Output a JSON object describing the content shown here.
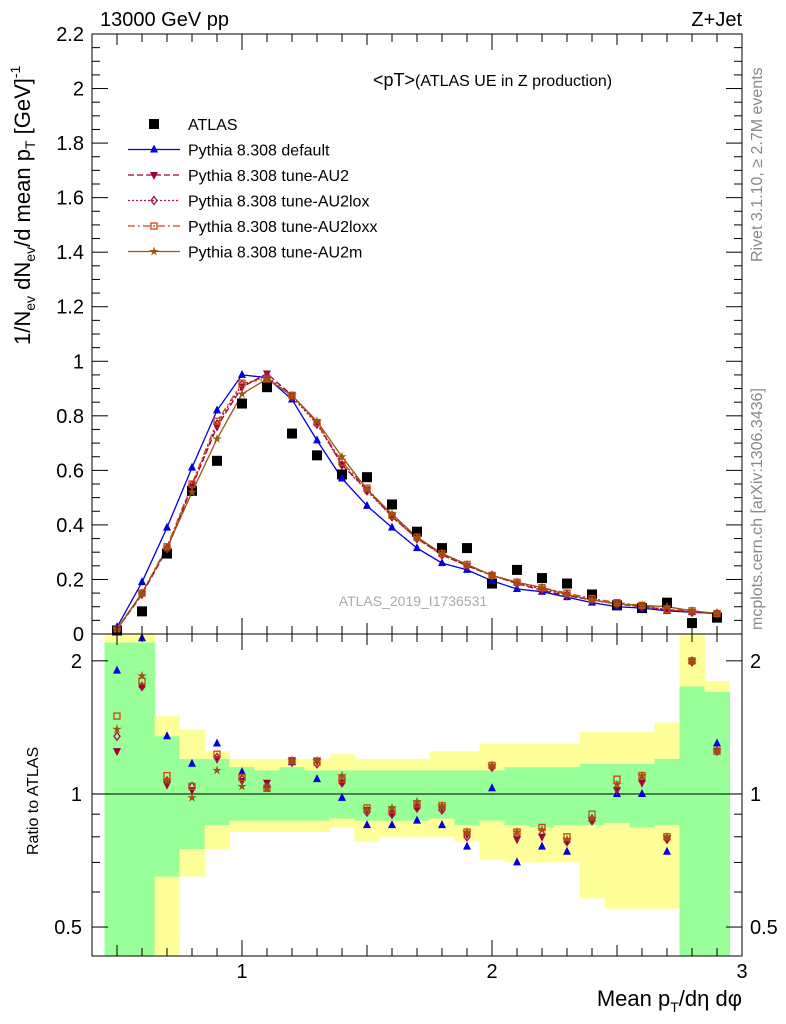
{
  "header": {
    "left": "13000 GeV pp",
    "right": "Z+Jet",
    "plot_title_main": "<pT>",
    "plot_title_sub": " (ATLAS UE in Z production)"
  },
  "side_labels": {
    "rivet": "Rivet 3.1.10, ≥ 2.7M events",
    "mcplots": "mcplots.cern.ch [arXiv:1306.3436]"
  },
  "watermark": "ATLAS_2019_I1736531",
  "axes": {
    "xlabel": "Mean p_T/dη dφ",
    "ylabel_top": "1/N_ev dN_ev/d mean p_T [GeV]^-1",
    "ylabel_bottom": "Ratio to ATLAS"
  },
  "colors": {
    "data": "#000000",
    "default": "#0000dd",
    "au2": "#990033",
    "au2lox": "#aa1144",
    "au2loxx": "#cc4411",
    "au2m": "#995511",
    "band_inner": "#99ff99",
    "band_outer": "#ffff99"
  },
  "chart_data": [
    {
      "type": "scatter",
      "panel": "main",
      "x": [
        0.5,
        0.6,
        0.7,
        0.8,
        0.9,
        1.0,
        1.1,
        1.2,
        1.3,
        1.4,
        1.5,
        1.6,
        1.7,
        1.8,
        1.9,
        2.0,
        2.1,
        2.2,
        2.3,
        2.4,
        2.5,
        2.6,
        2.7,
        2.8,
        2.9
      ],
      "xlim": [
        0.4,
        3.0
      ],
      "ylim": [
        0,
        2.2
      ],
      "xticks": [
        1,
        2,
        3
      ],
      "yticks": [
        0,
        0.2,
        0.4,
        0.6,
        0.8,
        1,
        1.2,
        1.4,
        1.6,
        1.8,
        2,
        2.2
      ],
      "ytick_labels": [
        "0",
        "0.2",
        "0.4",
        "0.6",
        "0.8",
        "1",
        "1.2",
        "1.4",
        "1.6",
        "1.8",
        "2",
        "2.2"
      ],
      "series": [
        {
          "name": "ATLAS",
          "key": "data",
          "style": "square",
          "values": [
            0.013,
            0.083,
            0.295,
            0.525,
            0.635,
            0.845,
            0.905,
            0.735,
            0.655,
            0.585,
            0.575,
            0.475,
            0.375,
            0.315,
            0.315,
            0.185,
            0.235,
            0.205,
            0.185,
            0.145,
            0.105,
            0.095,
            0.115,
            0.04,
            0.06
          ]
        },
        {
          "name": "Pythia 8.308 default",
          "key": "default",
          "style": "triangle",
          "line": "solid",
          "values": [
            0.025,
            0.19,
            0.39,
            0.61,
            0.82,
            0.95,
            0.94,
            0.86,
            0.71,
            0.57,
            0.47,
            0.39,
            0.315,
            0.26,
            0.235,
            0.195,
            0.165,
            0.155,
            0.135,
            0.115,
            0.1,
            0.095,
            0.085,
            0.08,
            0.075
          ]
        },
        {
          "name": "Pythia 8.308 tune-AU2",
          "key": "au2",
          "style": "tridown",
          "line": "dash",
          "values": [
            0.016,
            0.145,
            0.31,
            0.54,
            0.76,
            0.905,
            0.955,
            0.875,
            0.775,
            0.62,
            0.53,
            0.43,
            0.35,
            0.29,
            0.25,
            0.215,
            0.185,
            0.16,
            0.14,
            0.125,
            0.11,
            0.1,
            0.09,
            0.08,
            0.075
          ]
        },
        {
          "name": "Pythia 8.308 tune-AU2lox",
          "key": "au2lox",
          "style": "diamond",
          "line": "dot",
          "values": [
            0.019,
            0.148,
            0.315,
            0.545,
            0.77,
            0.915,
            0.945,
            0.87,
            0.77,
            0.62,
            0.525,
            0.43,
            0.35,
            0.29,
            0.25,
            0.215,
            0.185,
            0.165,
            0.145,
            0.125,
            0.11,
            0.1,
            0.09,
            0.08,
            0.075
          ]
        },
        {
          "name": "Pythia 8.308 tune-AU2loxx",
          "key": "au2loxx",
          "style": "opensquare",
          "line": "dashdot",
          "values": [
            0.02,
            0.15,
            0.32,
            0.55,
            0.78,
            0.92,
            0.935,
            0.875,
            0.775,
            0.63,
            0.535,
            0.435,
            0.355,
            0.295,
            0.255,
            0.215,
            0.19,
            0.17,
            0.15,
            0.13,
            0.115,
            0.105,
            0.09,
            0.085,
            0.075
          ]
        },
        {
          "name": "Pythia 8.308 tune-AU2m",
          "key": "au2m",
          "style": "star",
          "line": "solid",
          "values": [
            0.017,
            0.15,
            0.315,
            0.52,
            0.715,
            0.88,
            0.935,
            0.875,
            0.78,
            0.65,
            0.53,
            0.44,
            0.355,
            0.295,
            0.255,
            0.215,
            0.19,
            0.17,
            0.145,
            0.125,
            0.11,
            0.105,
            0.1,
            0.085,
            0.075
          ]
        }
      ]
    },
    {
      "type": "line",
      "panel": "ratio",
      "x": [
        0.5,
        0.6,
        0.7,
        0.8,
        0.9,
        1.0,
        1.1,
        1.2,
        1.3,
        1.4,
        1.5,
        1.6,
        1.7,
        1.8,
        1.9,
        2.0,
        2.1,
        2.2,
        2.3,
        2.4,
        2.5,
        2.6,
        2.7,
        2.8,
        2.9
      ],
      "xlim": [
        0.4,
        3.0
      ],
      "ylim": [
        0.43,
        2.3
      ],
      "yscale": "log",
      "yticks": [
        0.5,
        1,
        2
      ],
      "ytick_labels": [
        "0.5",
        "1",
        "2"
      ],
      "reference": 1,
      "band_edges": [
        0.45,
        0.55,
        0.65,
        0.75,
        0.85,
        0.95,
        1.05,
        1.15,
        1.25,
        1.35,
        1.45,
        1.55,
        1.65,
        1.75,
        1.85,
        1.95,
        2.05,
        2.15,
        2.25,
        2.35,
        2.45,
        2.55,
        2.65,
        2.75,
        2.85,
        2.95
      ],
      "band_inner_low": [
        0.35,
        0.35,
        0.65,
        0.75,
        0.85,
        0.87,
        0.87,
        0.87,
        0.87,
        0.88,
        0.87,
        0.87,
        0.87,
        0.88,
        0.85,
        0.87,
        0.85,
        0.84,
        0.85,
        0.85,
        0.86,
        0.84,
        0.85,
        0.4,
        0.35
      ],
      "band_inner_high": [
        2.2,
        2.2,
        1.35,
        1.2,
        1.2,
        1.15,
        1.13,
        1.15,
        1.13,
        1.13,
        1.13,
        1.13,
        1.13,
        1.13,
        1.13,
        1.13,
        1.15,
        1.15,
        1.15,
        1.17,
        1.17,
        1.17,
        1.2,
        1.75,
        1.7
      ],
      "band_outer_low": [
        0.35,
        0.35,
        0.35,
        0.65,
        0.75,
        0.82,
        0.82,
        0.82,
        0.82,
        0.84,
        0.78,
        0.8,
        0.8,
        0.8,
        0.78,
        0.71,
        0.7,
        0.7,
        0.7,
        0.58,
        0.55,
        0.55,
        0.55,
        0.35,
        0.35
      ],
      "band_outer_high": [
        2.3,
        2.3,
        1.5,
        1.4,
        1.25,
        1.2,
        1.2,
        1.2,
        1.2,
        1.23,
        1.2,
        1.2,
        1.2,
        1.25,
        1.25,
        1.3,
        1.3,
        1.3,
        1.3,
        1.38,
        1.38,
        1.38,
        1.45,
        2.3,
        1.8
      ],
      "series": [
        {
          "name": "Pythia 8.308 default",
          "key": "default",
          "style": "triangle",
          "line": "solid",
          "values": [
            1.9,
            2.25,
            1.35,
            1.17,
            1.3,
            1.12,
            1.05,
            1.18,
            1.08,
            0.98,
            0.85,
            0.85,
            0.87,
            0.85,
            0.76,
            1.03,
            0.7,
            0.76,
            0.74,
            0.88,
            1.0,
            1.0,
            0.74,
            2.0,
            1.3
          ]
        },
        {
          "name": "Pythia 8.308 tune-AU2",
          "key": "au2",
          "style": "tridown",
          "line": "dash",
          "values": [
            1.25,
            1.75,
            1.05,
            1.02,
            1.2,
            1.07,
            1.06,
            1.19,
            1.19,
            1.06,
            0.92,
            0.9,
            0.93,
            0.93,
            0.81,
            1.15,
            0.79,
            0.8,
            0.78,
            0.87,
            1.02,
            1.06,
            0.79,
            1.99,
            1.25
          ]
        },
        {
          "name": "Pythia 8.308 tune-AU2lox",
          "key": "au2lox",
          "style": "diamond",
          "line": "dot",
          "values": [
            1.35,
            1.75,
            1.07,
            1.04,
            1.21,
            1.08,
            1.04,
            1.18,
            1.17,
            1.06,
            0.91,
            0.9,
            0.93,
            0.92,
            0.8,
            1.15,
            0.8,
            0.81,
            0.78,
            0.87,
            1.03,
            1.07,
            0.79,
            1.99,
            1.25
          ]
        },
        {
          "name": "Pythia 8.308 tune-AU2loxx",
          "key": "au2loxx",
          "style": "opensquare",
          "line": "dashdot",
          "values": [
            1.5,
            1.8,
            1.1,
            1.04,
            1.23,
            1.09,
            1.03,
            1.19,
            1.18,
            1.08,
            0.93,
            0.92,
            0.95,
            0.94,
            0.82,
            1.16,
            0.82,
            0.84,
            0.8,
            0.9,
            1.08,
            1.1,
            0.8,
            2.0,
            1.25
          ]
        },
        {
          "name": "Pythia 8.308 tune-AU2m",
          "key": "au2m",
          "style": "star",
          "line": "solid",
          "values": [
            1.4,
            1.85,
            1.07,
            0.98,
            1.13,
            1.04,
            1.03,
            1.19,
            1.19,
            1.1,
            0.92,
            0.93,
            0.96,
            0.94,
            0.82,
            1.16,
            0.82,
            0.83,
            0.79,
            0.88,
            1.05,
            1.1,
            0.8,
            2.0,
            1.25
          ]
        }
      ]
    }
  ]
}
